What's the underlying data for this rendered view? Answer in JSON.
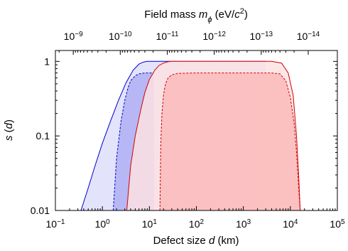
{
  "chart_data": {
    "type": "area",
    "title": "",
    "top_axis": {
      "label_prefix": "Field mass ",
      "label_symbol": "m",
      "label_subscript": "ϕ",
      "label_units_open": " (eV/",
      "label_units_var": "c",
      "label_units_exp": "2",
      "label_units_close": ")",
      "scale": "log",
      "ticks": [
        {
          "base": "10",
          "exp": "−9",
          "value": 1e-09
        },
        {
          "base": "10",
          "exp": "−10",
          "value": 1e-10
        },
        {
          "base": "10",
          "exp": "−11",
          "value": 1e-11
        },
        {
          "base": "10",
          "exp": "−12",
          "value": 1e-12
        },
        {
          "base": "10",
          "exp": "−13",
          "value": 1e-13
        },
        {
          "base": "10",
          "exp": "−14",
          "value": 1e-14
        }
      ]
    },
    "xaxis": {
      "label_prefix": "Defect size ",
      "label_var": "d",
      "label_suffix": " (km)",
      "scale": "log",
      "xlim": [
        0.1,
        100000
      ],
      "ticks": [
        {
          "base": "10",
          "exp": "−1",
          "value": 0.1
        },
        {
          "base": "10",
          "exp": "0",
          "value": 1
        },
        {
          "base": "10",
          "exp": "1",
          "value": 10
        },
        {
          "base": "10",
          "exp": "2",
          "value": 100
        },
        {
          "base": "10",
          "exp": "3",
          "value": 1000
        },
        {
          "base": "10",
          "exp": "4",
          "value": 10000
        },
        {
          "base": "10",
          "exp": "5",
          "value": 100000
        }
      ]
    },
    "yaxis": {
      "label_var": "s",
      "label_open": " (",
      "label_arg": "d",
      "label_close": ")",
      "scale": "log",
      "ylim": [
        0.01,
        1.4
      ],
      "ticks": [
        {
          "label": "1",
          "value": 1
        },
        {
          "label": "0.1",
          "value": 0.1
        },
        {
          "label": "0.01",
          "value": 0.01
        }
      ]
    },
    "grid": false,
    "series": [
      {
        "color": "#0000cc",
        "fill_outer": "#e3e3fb",
        "fill_inner": "#b7b7f5",
        "outer": {
          "x": [
            0.35,
            0.5,
            0.7,
            1.0,
            1.5,
            2.2,
            3.2,
            4.5,
            6.0,
            7.5,
            9.0,
            12,
            50,
            300,
            1000,
            2000,
            3000
          ],
          "y": [
            0.01,
            0.02,
            0.04,
            0.08,
            0.16,
            0.3,
            0.52,
            0.76,
            0.92,
            0.98,
            1.0,
            1.0,
            1.0,
            1.0,
            1.0,
            1.0,
            1.0
          ]
        },
        "inner": {
          "x": [
            1.7,
            2.0,
            2.5,
            3.0,
            3.5,
            4.0,
            5.0,
            6.0,
            7.0,
            8.0,
            9.0,
            11,
            12.6
          ],
          "y": [
            0.01,
            0.05,
            0.16,
            0.3,
            0.44,
            0.55,
            0.64,
            0.68,
            0.69,
            0.7,
            0.7,
            0.7,
            0.7
          ]
        }
      },
      {
        "color": "#d40000",
        "fill_outer": "#fde2e2",
        "fill_inner": "#fbbcbc",
        "outer": {
          "x": [
            3.3,
            4.0,
            5.0,
            6.5,
            8.0,
            10,
            13,
            16,
            20,
            25,
            30,
            40,
            100,
            1000,
            4000,
            6500,
            9000,
            11500,
            13500,
            15000,
            16200
          ],
          "y": [
            0.01,
            0.04,
            0.1,
            0.22,
            0.38,
            0.57,
            0.76,
            0.88,
            0.95,
            0.99,
            1.0,
            1.0,
            1.0,
            1.0,
            1.0,
            0.95,
            0.7,
            0.35,
            0.1,
            0.03,
            0.01
          ]
        },
        "inner": {
          "x": [
            16.8,
            17.5,
            18.5,
            20,
            22,
            25,
            30,
            40,
            100,
            1000,
            4000,
            6000,
            8000,
            10000,
            12000,
            13500,
            15000,
            16200
          ],
          "y": [
            0.01,
            0.08,
            0.2,
            0.36,
            0.5,
            0.6,
            0.66,
            0.69,
            0.7,
            0.7,
            0.7,
            0.68,
            0.55,
            0.33,
            0.15,
            0.06,
            0.02,
            0.01
          ]
        }
      }
    ]
  }
}
